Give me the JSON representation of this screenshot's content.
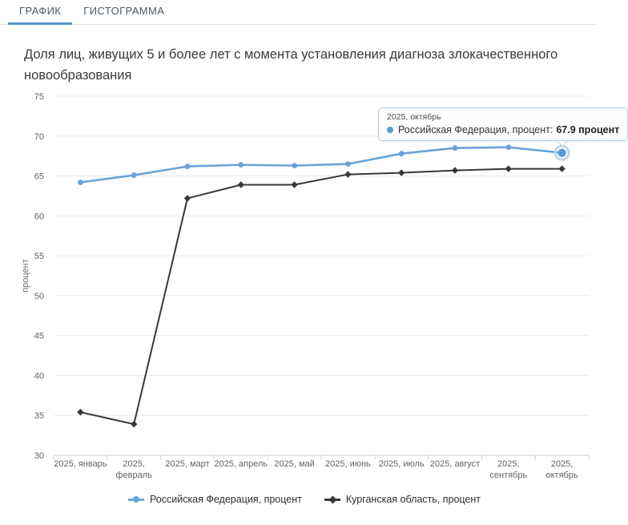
{
  "tabs": [
    {
      "label": "ГРАФИК",
      "active": true
    },
    {
      "label": "ГИСТОГРАММА",
      "active": false
    }
  ],
  "title": "Доля лиц, живущих 5 и более лет с момента установления диагноза злокачественного новообразования",
  "chart_data": {
    "type": "line",
    "categories": [
      "2025, январь",
      "2025, февраль",
      "2025, март",
      "2025, апрель",
      "2025, май",
      "2025, июнь",
      "2025, июль",
      "2025, август",
      "2025, сентябрь",
      "2025, октябрь"
    ],
    "series": [
      {
        "name": "Российская Федерация, процент",
        "color": "#69a3d9",
        "marker": "circle",
        "values": [
          64.2,
          65.1,
          66.2,
          66.4,
          66.3,
          66.5,
          67.8,
          68.5,
          68.6,
          67.9
        ]
      },
      {
        "name": "Курганская область, процент",
        "color": "#383838",
        "marker": "diamond",
        "values": [
          35.4,
          33.9,
          62.2,
          63.9,
          63.9,
          65.2,
          65.4,
          65.7,
          65.9,
          65.9
        ]
      }
    ],
    "xlabel": "",
    "ylabel": "процент",
    "ylim": [
      30,
      75
    ],
    "yticks": [
      30,
      35,
      40,
      45,
      50,
      55,
      60,
      65,
      70,
      75
    ],
    "grid": true,
    "legend_position": "bottom"
  },
  "tooltip": {
    "header": "2025, октябрь",
    "label": "Российская Федерация, процент:",
    "value": "67.9 процент",
    "marker_color": "#5b9bd5",
    "highlight_series": 0,
    "highlight_index": 9
  },
  "colors": {
    "accent_blue": "#5292cf",
    "grid_line": "#ececec",
    "axis_line": "#cfcfcf",
    "axis_text": "#5f6368",
    "tooltip_border": "#b5cee6",
    "highlight_ring": "#bdd6ef"
  }
}
